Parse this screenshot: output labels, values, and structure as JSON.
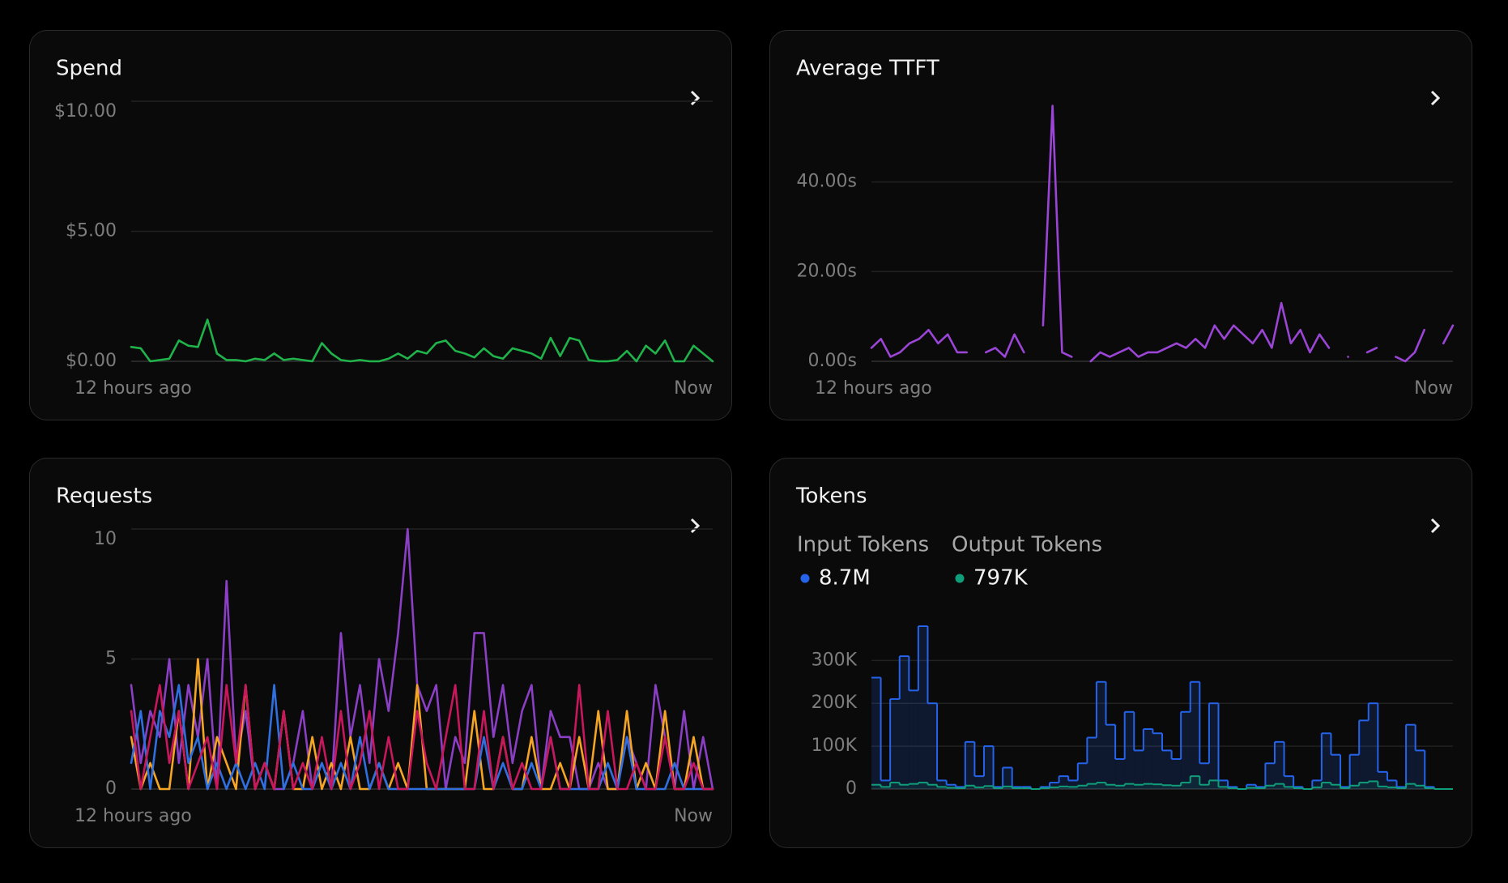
{
  "chart_data": [
    {
      "type": "line",
      "title": "Spend",
      "ylim": [
        0,
        10
      ],
      "yticks": [
        {
          "value": 0,
          "label": "$0.00"
        },
        {
          "value": 5,
          "label": "$5.00"
        },
        {
          "value": 10,
          "label": "$10.00"
        }
      ],
      "xlim": [
        0,
        61
      ],
      "xticks": [
        {
          "value": 0,
          "label": "12 hours ago"
        },
        {
          "value": 61,
          "label": "Now"
        }
      ],
      "grid": true,
      "series": [
        {
          "color": "#1fb34a",
          "values": [
            0.55,
            0.5,
            0,
            0.05,
            0.1,
            0.8,
            0.6,
            0.55,
            1.6,
            0.3,
            0.05,
            0.05,
            0,
            0.1,
            0.05,
            0.3,
            0.05,
            0.1,
            0.05,
            0,
            0.7,
            0.3,
            0.05,
            0,
            0.05,
            0,
            0,
            0.1,
            0.3,
            0.1,
            0.4,
            0.3,
            0.7,
            0.8,
            0.4,
            0.3,
            0.15,
            0.5,
            0.2,
            0.1,
            0.5,
            0.4,
            0.3,
            0.1,
            0.9,
            0.2,
            0.9,
            0.8,
            0.05,
            0,
            0,
            0.05,
            0.4,
            0,
            0.6,
            0.3,
            0.8,
            0,
            0,
            0.6,
            0.3,
            0
          ]
        }
      ]
    },
    {
      "type": "line",
      "title": "Average TTFT",
      "ylim": [
        0,
        58
      ],
      "yticks": [
        {
          "value": 0,
          "label": "0.00s"
        },
        {
          "value": 20,
          "label": "20.00s"
        },
        {
          "value": 40,
          "label": "40.00s"
        }
      ],
      "xlim": [
        0,
        61
      ],
      "xticks": [
        {
          "value": 0,
          "label": "12 hours ago"
        },
        {
          "value": 61,
          "label": "Now"
        }
      ],
      "grid": true,
      "series": [
        {
          "color": "#9b45d6",
          "values": [
            3,
            5,
            1,
            2,
            4,
            5,
            7,
            4,
            6,
            2,
            2,
            null,
            2,
            3,
            1,
            6,
            2,
            null,
            8,
            57,
            2,
            1,
            null,
            0,
            2,
            1,
            2,
            3,
            1,
            2,
            2,
            3,
            4,
            3,
            5,
            3,
            8,
            5,
            8,
            6,
            4,
            7,
            3,
            13,
            4,
            7,
            2,
            6,
            3,
            null,
            1,
            null,
            2,
            3,
            null,
            1,
            0,
            2,
            7,
            null,
            4,
            8
          ]
        }
      ]
    },
    {
      "type": "line",
      "title": "Requests",
      "ylim": [
        0,
        10
      ],
      "yticks": [
        0,
        5,
        10
      ],
      "xlim": [
        0,
        61
      ],
      "xticks": [
        {
          "value": 0,
          "label": "12 hours ago"
        },
        {
          "value": 61,
          "label": "Now"
        }
      ],
      "grid": true,
      "series": [
        {
          "color": "#8b3fc4",
          "values": [
            4,
            1,
            3,
            2,
            5,
            1,
            4,
            2,
            5,
            0,
            8,
            1,
            3,
            0,
            1,
            0,
            0,
            1,
            3,
            0,
            1,
            0,
            6,
            2,
            4,
            1,
            5,
            3,
            6,
            10,
            4,
            3,
            4,
            0,
            2,
            1,
            6,
            6,
            2,
            4,
            1,
            3,
            4,
            0,
            3,
            2,
            2,
            0,
            0,
            1,
            0,
            0,
            2,
            1,
            0,
            4,
            2,
            0,
            3,
            0,
            2,
            0
          ]
        },
        {
          "color": "#f5a524",
          "values": [
            2,
            0,
            1,
            0,
            0,
            3,
            0,
            5,
            0,
            2,
            1,
            0,
            4,
            0,
            1,
            0,
            3,
            0,
            0,
            2,
            0,
            1,
            0,
            2,
            0,
            0,
            1,
            0,
            1,
            0,
            4,
            0,
            0,
            0,
            0,
            0,
            3,
            0,
            0,
            2,
            0,
            0,
            2,
            0,
            0,
            1,
            0,
            2,
            0,
            3,
            0,
            0,
            3,
            0,
            1,
            0,
            3,
            0,
            0,
            2,
            0,
            0
          ]
        },
        {
          "color": "#2f6fe0",
          "values": [
            1,
            3,
            0,
            3,
            2,
            4,
            1,
            2,
            0,
            1,
            0,
            1,
            0,
            1,
            0,
            4,
            0,
            1,
            0,
            0,
            1,
            0,
            1,
            0,
            2,
            0,
            1,
            0,
            0,
            0,
            0,
            0,
            0,
            0,
            0,
            0,
            0,
            2,
            0,
            1,
            0,
            0,
            1,
            0,
            2,
            0,
            0,
            0,
            0,
            0,
            1,
            0,
            2,
            0,
            0,
            0,
            0,
            1,
            0,
            0,
            0,
            0
          ]
        },
        {
          "color": "#c8175d",
          "values": [
            3,
            0,
            2,
            4,
            1,
            3,
            0,
            1,
            2,
            0,
            4,
            1,
            4,
            0,
            1,
            0,
            3,
            0,
            1,
            0,
            2,
            0,
            3,
            0,
            1,
            3,
            0,
            2,
            0,
            0,
            3,
            1,
            0,
            2,
            4,
            0,
            0,
            3,
            0,
            2,
            0,
            1,
            0,
            0,
            2,
            0,
            0,
            4,
            0,
            0,
            3,
            0,
            0,
            1,
            0,
            0,
            2,
            0,
            0,
            1,
            0,
            0
          ]
        }
      ]
    },
    {
      "type": "step",
      "title": "Tokens",
      "ylim": [
        0,
        380000
      ],
      "yticks": [
        {
          "value": 0,
          "label": "0"
        },
        {
          "value": 100000,
          "label": "100K"
        },
        {
          "value": 200000,
          "label": "200K"
        },
        {
          "value": 300000,
          "label": "300K"
        }
      ],
      "xlim": [
        0,
        62
      ],
      "grid": true,
      "series": [
        {
          "name": "Input Tokens",
          "color": "#2563eb",
          "total": 8700000,
          "total_label": "8.7M",
          "values": [
            260000,
            20000,
            210000,
            310000,
            230000,
            380000,
            200000,
            20000,
            10000,
            5000,
            110000,
            30000,
            100000,
            5000,
            50000,
            5000,
            5000,
            0,
            5000,
            15000,
            30000,
            20000,
            60000,
            120000,
            250000,
            150000,
            70000,
            180000,
            90000,
            140000,
            130000,
            90000,
            70000,
            180000,
            250000,
            60000,
            200000,
            20000,
            5000,
            0,
            10000,
            5000,
            60000,
            110000,
            30000,
            5000,
            0,
            20000,
            130000,
            80000,
            5000,
            80000,
            160000,
            200000,
            40000,
            20000,
            5000,
            150000,
            90000,
            5000,
            0,
            0
          ]
        },
        {
          "name": "Output Tokens",
          "color": "#0f9d7a",
          "total": 797000,
          "total_label": "797K",
          "values": [
            10000,
            5000,
            15000,
            10000,
            12000,
            15000,
            10000,
            5000,
            3000,
            2000,
            8000,
            4000,
            7000,
            2000,
            6000,
            2000,
            2000,
            0,
            2000,
            4000,
            6000,
            5000,
            8000,
            12000,
            15000,
            10000,
            8000,
            12000,
            10000,
            12000,
            11000,
            9000,
            8000,
            15000,
            30000,
            10000,
            20000,
            5000,
            2000,
            0,
            3000,
            2000,
            8000,
            12000,
            5000,
            2000,
            0,
            4000,
            15000,
            10000,
            2000,
            8000,
            15000,
            18000,
            6000,
            4000,
            2000,
            12000,
            8000,
            2000,
            0,
            0
          ]
        }
      ]
    }
  ]
}
